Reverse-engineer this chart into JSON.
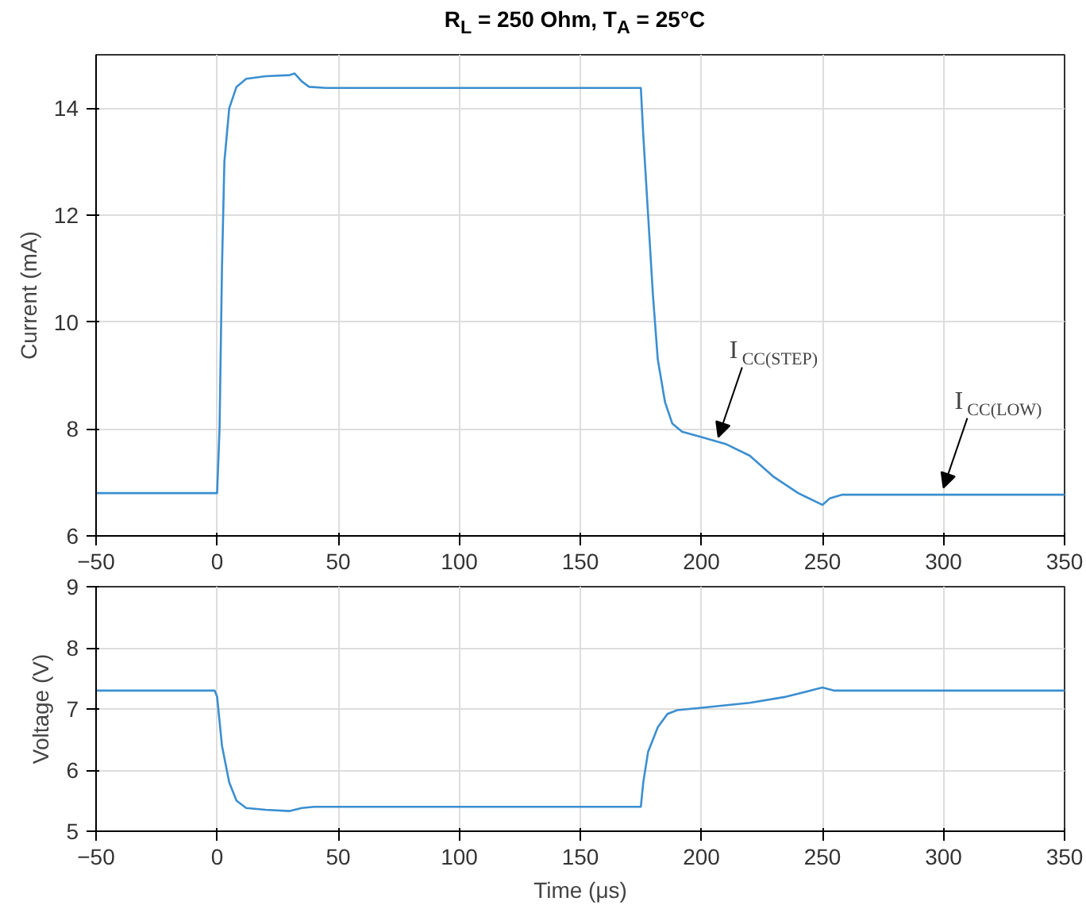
{
  "chart_data": [
    {
      "type": "line",
      "title": "R$_{L}$ = 250 Ohm, T$_{A}$ = 25°C",
      "ylabel": "Current (mA)",
      "xlim": [
        -50,
        350
      ],
      "xticks": [
        -50,
        0,
        50,
        100,
        150,
        200,
        250,
        300,
        350
      ],
      "ylim": [
        6,
        15
      ],
      "yticks": [
        6,
        8,
        10,
        12,
        14
      ],
      "grid": true,
      "tick_labels": "xy",
      "x": [
        -50,
        -1,
        0,
        1,
        2,
        3,
        5,
        8,
        12,
        20,
        30,
        32,
        35,
        38,
        45,
        175,
        176,
        178,
        180,
        182,
        185,
        188,
        192,
        200,
        210,
        220,
        230,
        240,
        250,
        253,
        258,
        350
      ],
      "series": [
        {
          "color": "#3b8fd0",
          "values": [
            6.8,
            6.8,
            6.8,
            8,
            11,
            13,
            14,
            14.4,
            14.55,
            14.6,
            14.62,
            14.65,
            14.5,
            14.4,
            14.38,
            14.38,
            13.5,
            12,
            10.5,
            9.3,
            8.5,
            8.1,
            7.95,
            7.85,
            7.72,
            7.5,
            7.1,
            6.8,
            6.58,
            6.7,
            6.77,
            6.77
          ]
        }
      ],
      "annotations": [
        {
          "text": "I$_{CC(STEP)}$",
          "x": 207,
          "y": 7.85
        },
        {
          "text": "I$_{CC(LOW)}$",
          "x": 300,
          "y": 6.9
        }
      ]
    },
    {
      "type": "line",
      "xlabel": "Time (μs)",
      "ylabel": "Voltage (V)",
      "xlim": [
        -50,
        350
      ],
      "xticks": [
        -50,
        0,
        50,
        100,
        150,
        200,
        250,
        300,
        350
      ],
      "ylim": [
        5,
        9
      ],
      "yticks": [
        5,
        6,
        7,
        8,
        9
      ],
      "grid": true,
      "x": [
        -50,
        -1,
        0,
        2,
        5,
        8,
        12,
        20,
        30,
        35,
        40,
        175,
        176,
        178,
        182,
        186,
        190,
        200,
        220,
        235,
        248,
        250,
        255,
        260,
        350
      ],
      "series": [
        {
          "color": "#3b8fd0",
          "values": [
            7.3,
            7.3,
            7.2,
            6.4,
            5.8,
            5.5,
            5.38,
            5.35,
            5.33,
            5.38,
            5.4,
            5.4,
            5.8,
            6.3,
            6.7,
            6.92,
            6.98,
            7.02,
            7.1,
            7.2,
            7.33,
            7.35,
            7.3,
            7.3,
            7.3
          ]
        }
      ]
    }
  ]
}
